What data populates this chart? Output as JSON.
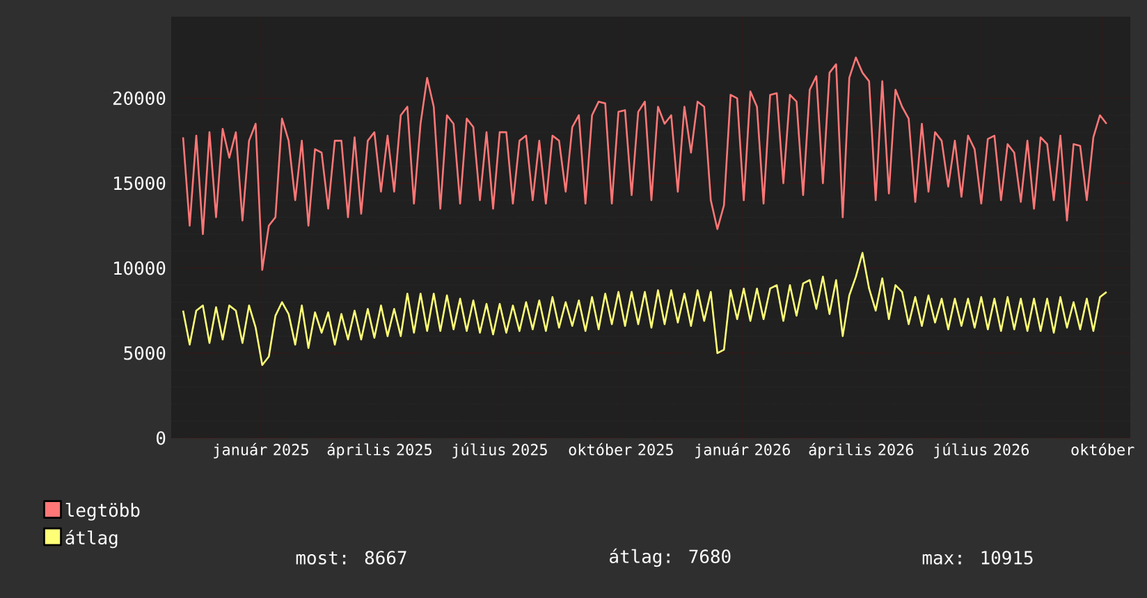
{
  "chart_data": {
    "type": "line",
    "xlim": [
      "2024-10-25",
      "2026-10-22"
    ],
    "ylim": [
      0,
      24800
    ],
    "yticks": [
      0,
      5000,
      10000,
      15000,
      20000
    ],
    "xticks": [
      {
        "value": "2025-01-01",
        "label": "január 2025"
      },
      {
        "value": "2025-04-01",
        "label": "április 2025"
      },
      {
        "value": "2025-07-01",
        "label": "július 2025"
      },
      {
        "value": "2025-10-01",
        "label": "október 2025"
      },
      {
        "value": "2026-01-01",
        "label": "január 2026"
      },
      {
        "value": "2026-04-01",
        "label": "április 2026"
      },
      {
        "value": "2026-07-01",
        "label": "július 2026"
      },
      {
        "value": "2026-10-01",
        "label": "október"
      }
    ],
    "grid": true,
    "legend": "bottom left",
    "marker": "none",
    "line_style": "solid",
    "annotations": [
      "most: 8667",
      "átlag: 7680",
      "max: 10915"
    ],
    "x": [
      "2024-11-03",
      "2024-11-08",
      "2024-11-13",
      "2024-11-18",
      "2024-11-23",
      "2024-11-28",
      "2024-12-03",
      "2024-12-08",
      "2024-12-13",
      "2024-12-18",
      "2024-12-23",
      "2024-12-28",
      "2025-01-02",
      "2025-01-07",
      "2025-01-12",
      "2025-01-17",
      "2025-01-22",
      "2025-01-27",
      "2025-02-01",
      "2025-02-06",
      "2025-02-11",
      "2025-02-16",
      "2025-02-21",
      "2025-02-26",
      "2025-03-03",
      "2025-03-08",
      "2025-03-13",
      "2025-03-18",
      "2025-03-23",
      "2025-03-28",
      "2025-04-02",
      "2025-04-07",
      "2025-04-12",
      "2025-04-17",
      "2025-04-22",
      "2025-04-27",
      "2025-05-02",
      "2025-05-07",
      "2025-05-12",
      "2025-05-17",
      "2025-05-22",
      "2025-05-27",
      "2025-06-01",
      "2025-06-06",
      "2025-06-11",
      "2025-06-16",
      "2025-06-21",
      "2025-06-26",
      "2025-07-01",
      "2025-07-06",
      "2025-07-11",
      "2025-07-16",
      "2025-07-21",
      "2025-07-26",
      "2025-07-31",
      "2025-08-05",
      "2025-08-10",
      "2025-08-15",
      "2025-08-20",
      "2025-08-25",
      "2025-08-30",
      "2025-09-04",
      "2025-09-09",
      "2025-09-14",
      "2025-09-19",
      "2025-09-24",
      "2025-09-29",
      "2025-10-04",
      "2025-10-09",
      "2025-10-14",
      "2025-10-19",
      "2025-10-24",
      "2025-10-29",
      "2025-11-03",
      "2025-11-08",
      "2025-11-13",
      "2025-11-18",
      "2025-11-23",
      "2025-11-28",
      "2025-12-03",
      "2025-12-08",
      "2025-12-13",
      "2025-12-18",
      "2025-12-23",
      "2025-12-28",
      "2026-01-02",
      "2026-01-07",
      "2026-01-12",
      "2026-01-17",
      "2026-01-22",
      "2026-01-27",
      "2026-02-01",
      "2026-02-06",
      "2026-02-11",
      "2026-02-16",
      "2026-02-21",
      "2026-02-26",
      "2026-03-03",
      "2026-03-08",
      "2026-03-13",
      "2026-03-18",
      "2026-03-23",
      "2026-03-28",
      "2026-04-02",
      "2026-04-07",
      "2026-04-12",
      "2026-04-17",
      "2026-04-22",
      "2026-04-27",
      "2026-05-02",
      "2026-05-07",
      "2026-05-12",
      "2026-05-17",
      "2026-05-22",
      "2026-05-27",
      "2026-06-01",
      "2026-06-06",
      "2026-06-11",
      "2026-06-16",
      "2026-06-21",
      "2026-06-26",
      "2026-07-01",
      "2026-07-06",
      "2026-07-11",
      "2026-07-16",
      "2026-07-21",
      "2026-07-26",
      "2026-07-31",
      "2026-08-05",
      "2026-08-10",
      "2026-08-15",
      "2026-08-20",
      "2026-08-25",
      "2026-08-30",
      "2026-09-04",
      "2026-09-09",
      "2026-09-14",
      "2026-09-19",
      "2026-09-24",
      "2026-09-29",
      "2026-10-04"
    ],
    "series": [
      {
        "name": "legtöbb",
        "color": "#ff7777",
        "values": [
          17700,
          12500,
          17800,
          12000,
          18000,
          13000,
          18200,
          16500,
          18000,
          12800,
          17500,
          18500,
          9900,
          12500,
          13000,
          18800,
          17500,
          14000,
          17500,
          12500,
          17000,
          16800,
          13500,
          17500,
          17500,
          13000,
          17700,
          13200,
          17500,
          18000,
          14500,
          17800,
          14500,
          19000,
          19500,
          13800,
          18500,
          21200,
          19500,
          13500,
          19000,
          18500,
          13800,
          18800,
          18300,
          14000,
          18000,
          13500,
          18000,
          18000,
          13800,
          17500,
          17800,
          14000,
          17500,
          13800,
          17800,
          17500,
          14500,
          18300,
          19000,
          13800,
          19000,
          19800,
          19700,
          13800,
          19200,
          19300,
          14300,
          19200,
          19800,
          14000,
          19500,
          18500,
          19000,
          14500,
          19500,
          16800,
          19800,
          19500,
          14000,
          12300,
          13700,
          20200,
          20000,
          14000,
          20400,
          19500,
          13800,
          20200,
          20300,
          15000,
          20200,
          19800,
          14300,
          20500,
          21300,
          15000,
          21500,
          22000,
          13000,
          21200,
          22400,
          21500,
          21000,
          14000,
          21000,
          14400,
          20500,
          19500,
          18800,
          13900,
          18500,
          14500,
          18000,
          17500,
          14800,
          17500,
          14200,
          17800,
          17000,
          13800,
          17600,
          17800,
          14000,
          17300,
          16800,
          13900,
          17500,
          13500,
          17700,
          17300,
          14000,
          17800,
          12800,
          17300,
          17200,
          14000,
          17700,
          19000,
          18500
        ]
      },
      {
        "name": "átlag",
        "color": "#ffff77",
        "values": [
          7500,
          5500,
          7500,
          7800,
          5600,
          7700,
          5800,
          7800,
          7500,
          5600,
          7800,
          6500,
          4300,
          4800,
          7200,
          8000,
          7300,
          5500,
          7800,
          5300,
          7400,
          6200,
          7400,
          5500,
          7300,
          5800,
          7500,
          5800,
          7600,
          5900,
          7800,
          6000,
          7600,
          6000,
          8500,
          6200,
          8500,
          6300,
          8500,
          6300,
          8400,
          6400,
          8200,
          6300,
          8100,
          6200,
          7900,
          6100,
          7900,
          6200,
          7800,
          6300,
          8000,
          6400,
          8100,
          6300,
          8300,
          6500,
          8000,
          6600,
          8100,
          6300,
          8300,
          6400,
          8500,
          6700,
          8600,
          6600,
          8600,
          6700,
          8600,
          6500,
          8700,
          6700,
          8700,
          6800,
          8500,
          6600,
          8700,
          6900,
          8600,
          5000,
          5200,
          8700,
          7000,
          8800,
          6900,
          8800,
          7000,
          8800,
          9000,
          6900,
          9000,
          7200,
          9100,
          9300,
          7600,
          9500,
          7300,
          9300,
          6000,
          8400,
          9500,
          10900,
          8800,
          7500,
          9400,
          7000,
          9000,
          8600,
          6700,
          8300,
          6600,
          8400,
          6800,
          8200,
          6400,
          8200,
          6600,
          8200,
          6500,
          8300,
          6400,
          8200,
          6300,
          8300,
          6400,
          8200,
          6300,
          8200,
          6300,
          8200,
          6200,
          8300,
          6500,
          8000,
          6400,
          8200,
          6300,
          8300,
          8600
        ]
      }
    ]
  }
}
